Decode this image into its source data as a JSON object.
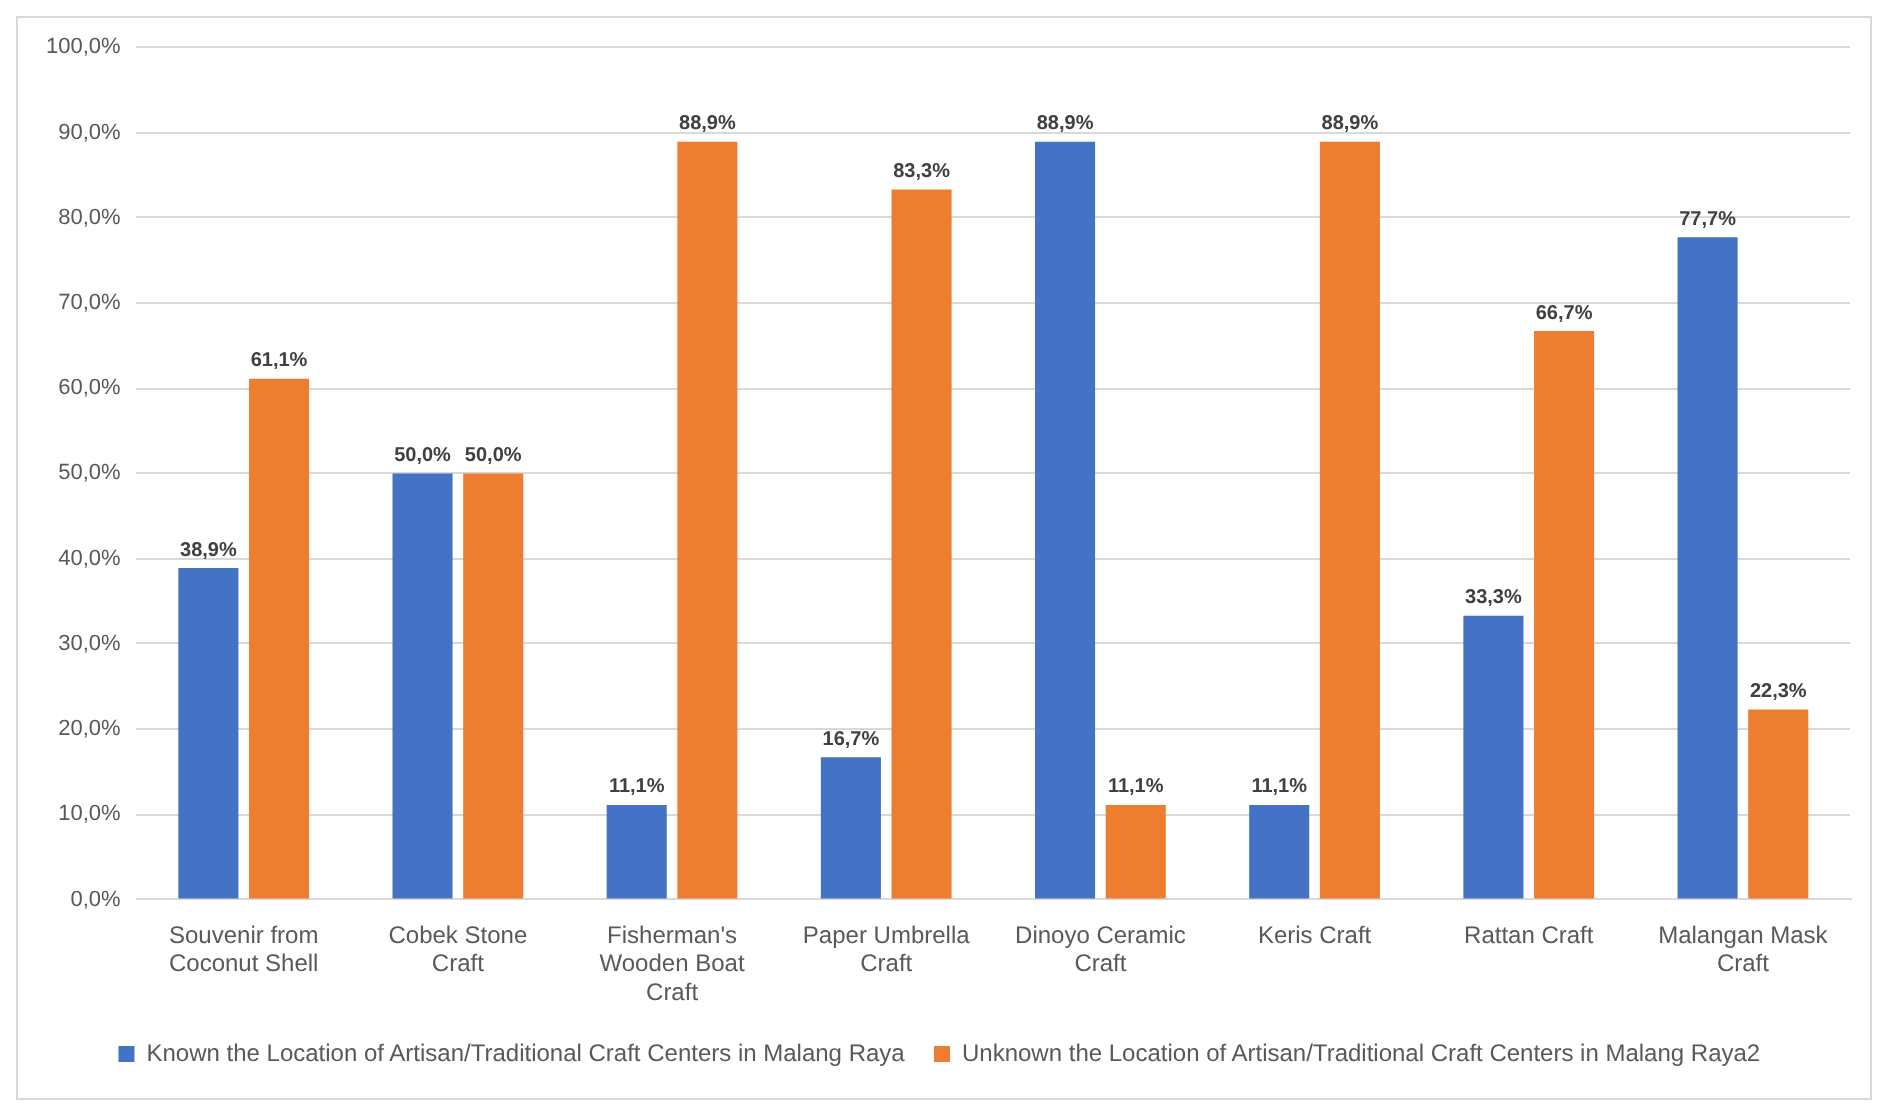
{
  "chart_data": {
    "type": "bar",
    "categories": [
      "Souvenir from Coconut Shell",
      "Cobek Stone Craft",
      "Fisherman's Wooden Boat Craft",
      "Paper Umbrella Craft",
      "Dinoyo Ceramic Craft",
      "Keris Craft",
      "Rattan Craft",
      "Malangan Mask Craft"
    ],
    "series": [
      {
        "name": "Known the Location of Artisan/Traditional Craft Centers in Malang Raya",
        "color": "#4472c4",
        "values": [
          38.9,
          50.0,
          11.1,
          16.7,
          88.9,
          11.1,
          33.3,
          77.7
        ],
        "value_labels": [
          "38,9%",
          "50,0%",
          "11,1%",
          "16,7%",
          "88,9%",
          "11,1%",
          "33,3%",
          "77,7%"
        ]
      },
      {
        "name": "Unknown the Location of Artisan/Traditional Craft Centers in Malang Raya2",
        "color": "#ed7d31",
        "values": [
          61.1,
          50.0,
          88.9,
          83.3,
          11.1,
          88.9,
          66.7,
          22.3
        ],
        "value_labels": [
          "61,1%",
          "50,0%",
          "88,9%",
          "83,3%",
          "11,1%",
          "88,9%",
          "66,7%",
          "22,3%"
        ]
      }
    ],
    "ylim": [
      0,
      100
    ],
    "yticks": [
      {
        "value": 0,
        "label": "0,0%"
      },
      {
        "value": 10,
        "label": "10,0%"
      },
      {
        "value": 20,
        "label": "20,0%"
      },
      {
        "value": 30,
        "label": "30,0%"
      },
      {
        "value": 40,
        "label": "40,0%"
      },
      {
        "value": 50,
        "label": "50,0%"
      },
      {
        "value": 60,
        "label": "60,0%"
      },
      {
        "value": 70,
        "label": "70,0%"
      },
      {
        "value": 80,
        "label": "80,0%"
      },
      {
        "value": 90,
        "label": "90,0%"
      },
      {
        "value": 100,
        "label": "100,0%"
      }
    ],
    "grid": "y",
    "legend": "bottom"
  }
}
